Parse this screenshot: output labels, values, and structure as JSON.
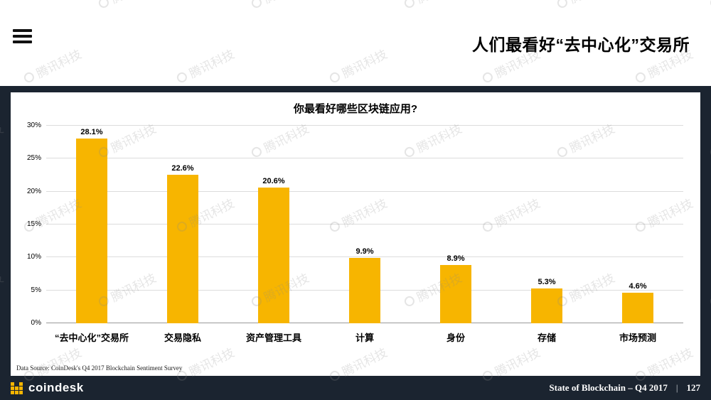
{
  "header": {
    "title": "人们最看好“去中心化”交易所"
  },
  "chart_data": {
    "type": "bar",
    "title": "你最看好哪些区块链应用?",
    "categories": [
      "“去中心化”交易所",
      "交易隐私",
      "资产管理工具",
      "计算",
      "身份",
      "存储",
      "市场预测"
    ],
    "values": [
      28.1,
      22.6,
      20.6,
      9.9,
      8.9,
      5.3,
      4.6
    ],
    "value_labels": [
      "28.1%",
      "22.6%",
      "20.6%",
      "9.9%",
      "8.9%",
      "5.3%",
      "4.6%"
    ],
    "ylim": [
      0,
      30
    ],
    "ytick_step": 5,
    "ytick_labels": [
      "0%",
      "5%",
      "10%",
      "15%",
      "20%",
      "25%",
      "30%"
    ],
    "bar_color": "#F7B500",
    "grid": true,
    "legend": "none"
  },
  "chart_footer": {
    "source": "Data Source: CoinDesk's Q4 2017 Blockchain Sentiment Survey"
  },
  "footer": {
    "brand": "coindesk",
    "report_title": "State of Blockchain – Q4 2017",
    "separator": "|",
    "page_number": "127"
  },
  "watermark": {
    "text": "腾讯科技"
  },
  "colors": {
    "background_dark": "#1B2430",
    "accent_yellow": "#F7B500",
    "card_white": "#FFFFFF"
  }
}
